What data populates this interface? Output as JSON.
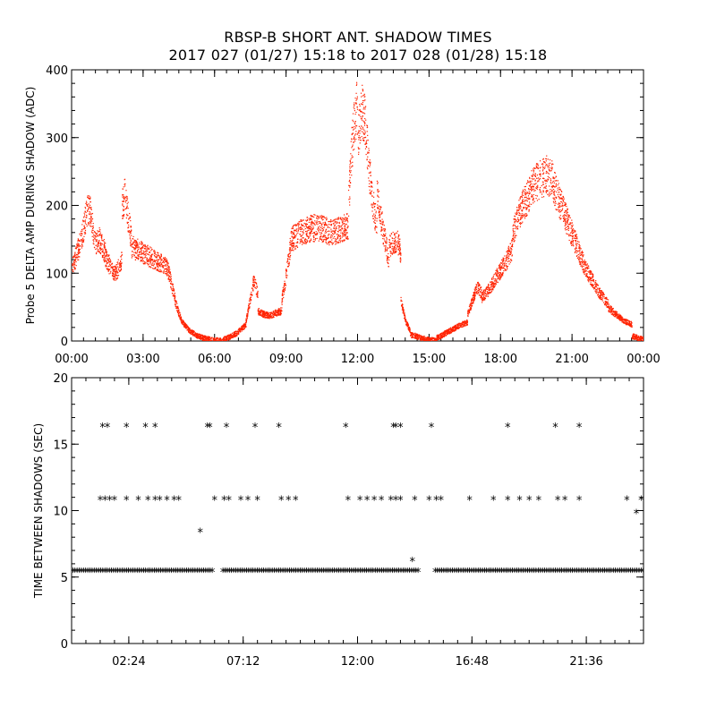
{
  "title_line1": "RBSP-B SHORT ANT. SHADOW TIMES",
  "title_line2": "2017 027 (01/27) 15:18 to 2017 028 (01/28) 15:18",
  "colors": {
    "top_series": "#ff2200",
    "bottom_series": "#000000"
  },
  "chart_data": [
    {
      "type": "scatter",
      "title": "",
      "xlabel": "",
      "ylabel": "Probe 5 DELTA AMP DURING SHADOW (ADC)",
      "xlim_hours": [
        0,
        24
      ],
      "ylim": [
        0,
        400
      ],
      "x_ticks": [
        "00:00",
        "03:00",
        "06:00",
        "09:00",
        "12:00",
        "15:00",
        "18:00",
        "21:00",
        "00:00"
      ],
      "y_ticks": [
        "0",
        "100",
        "200",
        "300",
        "400"
      ],
      "x_tick_hours": [
        0,
        3,
        6,
        9,
        12,
        15,
        18,
        21,
        24
      ],
      "y_tick_values": [
        0,
        100,
        200,
        300,
        400
      ],
      "series_color": "#ff2200",
      "segments": [
        {
          "start": 0.0,
          "end": 0.4,
          "values": [
            110,
            118,
            130,
            140,
            150
          ]
        },
        {
          "start": 0.4,
          "end": 0.9,
          "values": [
            150,
            175,
            195,
            190,
            160
          ]
        },
        {
          "start": 0.9,
          "end": 1.4,
          "values": [
            155,
            145,
            150,
            140,
            130
          ]
        },
        {
          "start": 1.4,
          "end": 2.1,
          "values": [
            125,
            115,
            105,
            100,
            110,
            120
          ]
        },
        {
          "start": 2.1,
          "end": 2.5,
          "values": [
            200,
            220,
            180,
            150
          ]
        },
        {
          "start": 2.5,
          "end": 4.0,
          "values": [
            140,
            135,
            130,
            125,
            120,
            115,
            110
          ]
        },
        {
          "start": 4.0,
          "end": 4.6,
          "values": [
            110,
            80,
            50,
            30
          ]
        },
        {
          "start": 4.6,
          "end": 6.3,
          "values": [
            30,
            15,
            8,
            4,
            2,
            1
          ]
        },
        {
          "start": 6.3,
          "end": 7.3,
          "values": [
            2,
            5,
            8,
            12,
            18,
            25
          ]
        },
        {
          "start": 7.3,
          "end": 7.8,
          "values": [
            30,
            60,
            90,
            70
          ]
        },
        {
          "start": 7.8,
          "end": 8.8,
          "values": [
            45,
            40,
            38,
            42,
            45
          ]
        },
        {
          "start": 8.8,
          "end": 9.2,
          "values": [
            60,
            100,
            150
          ]
        },
        {
          "start": 9.2,
          "end": 11.6,
          "values": [
            150,
            160,
            165,
            168,
            165,
            160,
            165,
            170
          ]
        },
        {
          "start": 11.6,
          "end": 12.0,
          "values": [
            200,
            280,
            330,
            350
          ]
        },
        {
          "start": 12.0,
          "end": 12.8,
          "values": [
            300,
            340,
            320,
            250,
            200,
            170
          ]
        },
        {
          "start": 12.8,
          "end": 13.3,
          "values": [
            220,
            180,
            150,
            120
          ]
        },
        {
          "start": 13.3,
          "end": 13.8,
          "values": [
            140,
            145,
            150,
            130
          ]
        },
        {
          "start": 13.8,
          "end": 14.2,
          "values": [
            60,
            30,
            15
          ]
        },
        {
          "start": 14.2,
          "end": 15.3,
          "values": [
            10,
            8,
            5,
            3,
            2,
            1
          ]
        },
        {
          "start": 15.3,
          "end": 16.6,
          "values": [
            5,
            10,
            15,
            20,
            25,
            28
          ]
        },
        {
          "start": 16.6,
          "end": 17.2,
          "values": [
            40,
            60,
            80,
            70
          ]
        },
        {
          "start": 17.2,
          "end": 18.5,
          "values": [
            65,
            75,
            90,
            105,
            120,
            140
          ]
        },
        {
          "start": 18.5,
          "end": 20.2,
          "values": [
            160,
            190,
            210,
            230,
            240,
            245,
            240
          ]
        },
        {
          "start": 20.2,
          "end": 22.5,
          "values": [
            230,
            200,
            170,
            140,
            110,
            90,
            70,
            55
          ]
        },
        {
          "start": 22.5,
          "end": 23.5,
          "values": [
            50,
            40,
            30,
            25
          ]
        },
        {
          "start": 23.5,
          "end": 24.0,
          "values": [
            8,
            5,
            3
          ]
        }
      ]
    },
    {
      "type": "scatter",
      "title": "",
      "xlabel": "",
      "ylabel": "TIME BETWEEN SHADOWS (SEC)",
      "xlim_hours": [
        0,
        24
      ],
      "ylim": [
        0,
        20
      ],
      "x_ticks": [
        "02:24",
        "07:12",
        "12:00",
        "16:48",
        "21:36"
      ],
      "y_ticks": [
        "0",
        "5",
        "10",
        "15",
        "20"
      ],
      "x_tick_hours": [
        2.4,
        7.2,
        12.0,
        16.8,
        21.6
      ],
      "y_tick_values": [
        0,
        5,
        10,
        15,
        20
      ],
      "series_color": "#000000",
      "baseline_value": 5.4,
      "baseline_gaps_hours": [
        [
          5.9,
          6.3
        ],
        [
          14.6,
          15.2
        ]
      ],
      "points": [
        {
          "x": 1.3,
          "y": 16.3
        },
        {
          "x": 1.5,
          "y": 16.3
        },
        {
          "x": 2.3,
          "y": 16.3
        },
        {
          "x": 3.1,
          "y": 16.3
        },
        {
          "x": 3.5,
          "y": 16.3
        },
        {
          "x": 5.7,
          "y": 16.3
        },
        {
          "x": 5.8,
          "y": 16.3
        },
        {
          "x": 6.5,
          "y": 16.3
        },
        {
          "x": 7.7,
          "y": 16.3
        },
        {
          "x": 8.7,
          "y": 16.3
        },
        {
          "x": 11.5,
          "y": 16.3
        },
        {
          "x": 13.5,
          "y": 16.3
        },
        {
          "x": 13.6,
          "y": 16.3
        },
        {
          "x": 13.8,
          "y": 16.3
        },
        {
          "x": 15.1,
          "y": 16.3
        },
        {
          "x": 18.3,
          "y": 16.3
        },
        {
          "x": 20.3,
          "y": 16.3
        },
        {
          "x": 21.3,
          "y": 16.3
        },
        {
          "x": 1.2,
          "y": 10.8
        },
        {
          "x": 1.4,
          "y": 10.8
        },
        {
          "x": 1.6,
          "y": 10.8
        },
        {
          "x": 1.8,
          "y": 10.8
        },
        {
          "x": 2.3,
          "y": 10.8
        },
        {
          "x": 2.8,
          "y": 10.8
        },
        {
          "x": 3.2,
          "y": 10.8
        },
        {
          "x": 3.5,
          "y": 10.8
        },
        {
          "x": 3.7,
          "y": 10.8
        },
        {
          "x": 4.0,
          "y": 10.8
        },
        {
          "x": 4.3,
          "y": 10.8
        },
        {
          "x": 4.5,
          "y": 10.8
        },
        {
          "x": 6.0,
          "y": 10.8
        },
        {
          "x": 6.4,
          "y": 10.8
        },
        {
          "x": 6.6,
          "y": 10.8
        },
        {
          "x": 7.1,
          "y": 10.8
        },
        {
          "x": 7.4,
          "y": 10.8
        },
        {
          "x": 7.8,
          "y": 10.8
        },
        {
          "x": 8.8,
          "y": 10.8
        },
        {
          "x": 9.1,
          "y": 10.8
        },
        {
          "x": 9.4,
          "y": 10.8
        },
        {
          "x": 11.6,
          "y": 10.8
        },
        {
          "x": 12.1,
          "y": 10.8
        },
        {
          "x": 12.4,
          "y": 10.8
        },
        {
          "x": 12.7,
          "y": 10.8
        },
        {
          "x": 13.0,
          "y": 10.8
        },
        {
          "x": 13.4,
          "y": 10.8
        },
        {
          "x": 13.6,
          "y": 10.8
        },
        {
          "x": 13.8,
          "y": 10.8
        },
        {
          "x": 14.4,
          "y": 10.8
        },
        {
          "x": 15.0,
          "y": 10.8
        },
        {
          "x": 15.3,
          "y": 10.8
        },
        {
          "x": 15.5,
          "y": 10.8
        },
        {
          "x": 16.7,
          "y": 10.8
        },
        {
          "x": 17.7,
          "y": 10.8
        },
        {
          "x": 18.3,
          "y": 10.8
        },
        {
          "x": 18.8,
          "y": 10.8
        },
        {
          "x": 19.2,
          "y": 10.8
        },
        {
          "x": 19.6,
          "y": 10.8
        },
        {
          "x": 20.4,
          "y": 10.8
        },
        {
          "x": 20.7,
          "y": 10.8
        },
        {
          "x": 21.3,
          "y": 10.8
        },
        {
          "x": 23.3,
          "y": 10.8
        },
        {
          "x": 23.9,
          "y": 10.8
        },
        {
          "x": 5.4,
          "y": 8.4
        },
        {
          "x": 14.3,
          "y": 6.2
        },
        {
          "x": 23.7,
          "y": 9.8
        }
      ]
    }
  ]
}
